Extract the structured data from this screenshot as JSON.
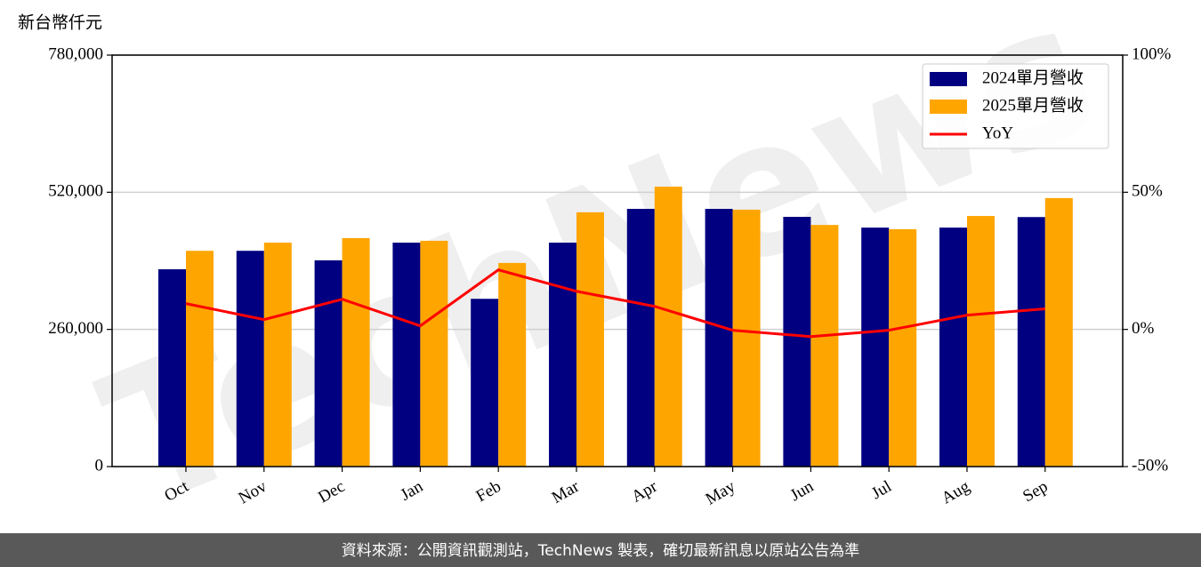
{
  "chart_data": {
    "type": "bar",
    "y_label": "新台幣仟元",
    "watermark": "TechNews",
    "footer": "資料來源：公開資訊觀測站，TechNews 製表，確切最新訊息以原站公告為準",
    "categories": [
      "Oct",
      "Nov",
      "Dec",
      "Jan",
      "Feb",
      "Mar",
      "Apr",
      "May",
      "Jun",
      "Jul",
      "Aug",
      "Sep"
    ],
    "series": [
      {
        "name": "2024單月營收",
        "color": "#000080",
        "values": [
          374000,
          409000,
          391000,
          424500,
          318000,
          424500,
          488500,
          488500,
          473400,
          453000,
          453000,
          473000
        ]
      },
      {
        "name": "2025單月營收",
        "color": "#FFA500",
        "values": [
          409000,
          424500,
          433000,
          428000,
          386000,
          482000,
          530600,
          487000,
          458000,
          450000,
          475000,
          509000
        ]
      },
      {
        "name": "YoY",
        "color": "#FF0000",
        "axis": "y2",
        "type": "line",
        "values": [
          9.4,
          3.6,
          11,
          1.3,
          21.7,
          13.9,
          8.4,
          -0.3,
          -2.6,
          -0.3,
          5.2,
          7.5
        ]
      }
    ],
    "ylim": [
      0,
      780000
    ],
    "yticks": [
      {
        "value": 0,
        "label": "0"
      },
      {
        "value": 260000,
        "label": "260,000"
      },
      {
        "value": 520000,
        "label": "520,000"
      },
      {
        "value": 780000,
        "label": "780,000"
      }
    ],
    "y2lim": [
      -50,
      100
    ],
    "y2ticks": [
      {
        "value": -50,
        "label": "-50%"
      },
      {
        "value": 0,
        "label": "0%"
      },
      {
        "value": 50,
        "label": "50%"
      },
      {
        "value": 100,
        "label": "100%"
      }
    ],
    "grid": true,
    "legend": "upper right"
  }
}
